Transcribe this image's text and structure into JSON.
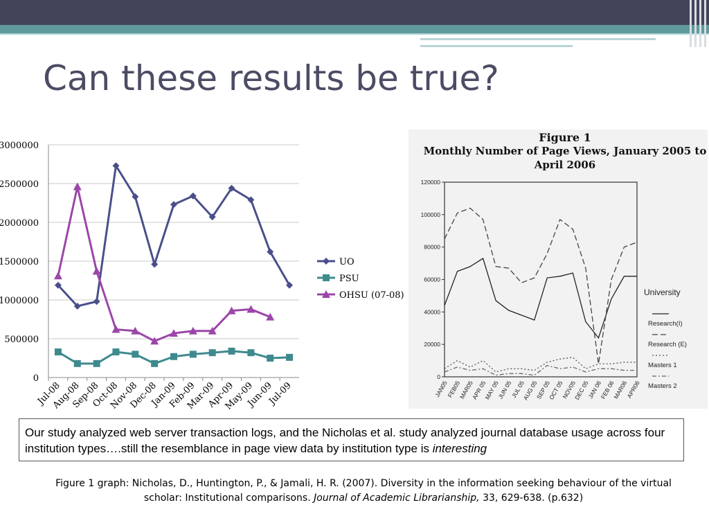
{
  "slide": {
    "title": "Can these results be true?",
    "callout": {
      "text": "Our study analyzed web server transaction logs, and the Nicholas et al. study analyzed journal database usage across four institution types….still the resemblance in page view data by institution type is ",
      "emphasis": "interesting"
    },
    "citation": {
      "part1": "Figure 1 graph: Nicholas, D., Huntington, P., & Jamali, H. R. (2007). Diversity in the information seeking behaviour of the virtual scholar: Institutional comparisons. ",
      "journal": "Journal of Academic Librarianship,",
      "part2": " 33, 629-638. (p.632)"
    }
  },
  "chart_data": [
    {
      "type": "line",
      "title": "",
      "xlabel": "",
      "ylabel": "",
      "categories": [
        "Jul-08",
        "Aug-08",
        "Sep-08",
        "Oct-08",
        "Nov-08",
        "Dec-08",
        "Jan-09",
        "Feb-09",
        "Mar-09",
        "Apr-09",
        "May-09",
        "Jun-09",
        "Jul-09"
      ],
      "ylim": [
        0,
        3000000
      ],
      "yticks": [
        0,
        500000,
        1000000,
        1500000,
        2000000,
        2500000,
        3000000
      ],
      "grid": true,
      "legend": "right",
      "series": [
        {
          "name": "UO",
          "color": "#4a4f8a",
          "marker": "diamond",
          "values": [
            1190000,
            920000,
            980000,
            2730000,
            2330000,
            1460000,
            2230000,
            2340000,
            2070000,
            2440000,
            2290000,
            1620000,
            1190000
          ]
        },
        {
          "name": "PSU",
          "color": "#3f8a8e",
          "marker": "square",
          "values": [
            330000,
            180000,
            180000,
            330000,
            300000,
            180000,
            270000,
            300000,
            320000,
            340000,
            320000,
            250000,
            260000
          ]
        },
        {
          "name": "OHSU (07-08)",
          "color": "#9b46a8",
          "marker": "triangle",
          "values": [
            1310000,
            2460000,
            1370000,
            620000,
            600000,
            470000,
            570000,
            600000,
            600000,
            860000,
            880000,
            780000,
            null
          ]
        }
      ]
    },
    {
      "type": "line",
      "title": "Figure 1 Monthly Number of Page Views, January 2005 to April 2006",
      "xlabel": "",
      "ylabel": "",
      "categories": [
        "JAN05",
        "FEB05",
        "MAR05",
        "APR 05",
        "MAY 05",
        "JUN 05",
        "JUL 05",
        "AUG 05",
        "SEP 05",
        "OCT 05",
        "NOV05",
        "DEC 05",
        "JAN 06",
        "FEB 06",
        "MAR06",
        "APR06"
      ],
      "ylim": [
        0,
        120000
      ],
      "yticks": [
        0,
        20000,
        40000,
        60000,
        80000,
        100000,
        120000
      ],
      "legend_title": "University",
      "legend": "right",
      "series": [
        {
          "name": "Research(I)",
          "color": "#222222",
          "dash": "none",
          "values": [
            44000,
            65000,
            68000,
            73000,
            47000,
            41000,
            38000,
            35000,
            61000,
            62000,
            64000,
            34000,
            24000,
            48000,
            62000,
            62000
          ]
        },
        {
          "name": "Research (E)",
          "color": "#444444",
          "dash": "8,4",
          "values": [
            85000,
            101000,
            104000,
            97000,
            68000,
            67000,
            58000,
            61000,
            76000,
            97000,
            91000,
            67000,
            8000,
            60000,
            80000,
            83000
          ]
        },
        {
          "name": "Masters 1",
          "color": "#555555",
          "dash": "2,3",
          "values": [
            5000,
            10000,
            6000,
            10000,
            3000,
            5000,
            5000,
            4000,
            9000,
            11000,
            12000,
            5000,
            8000,
            8000,
            9000,
            9000
          ]
        },
        {
          "name": "Masters 2",
          "color": "#666666",
          "dash": "6,3,2,3",
          "values": [
            3000,
            6000,
            4000,
            5000,
            1000,
            2000,
            2000,
            1000,
            7000,
            5000,
            6000,
            3000,
            5000,
            5000,
            4000,
            4000
          ]
        }
      ]
    }
  ]
}
